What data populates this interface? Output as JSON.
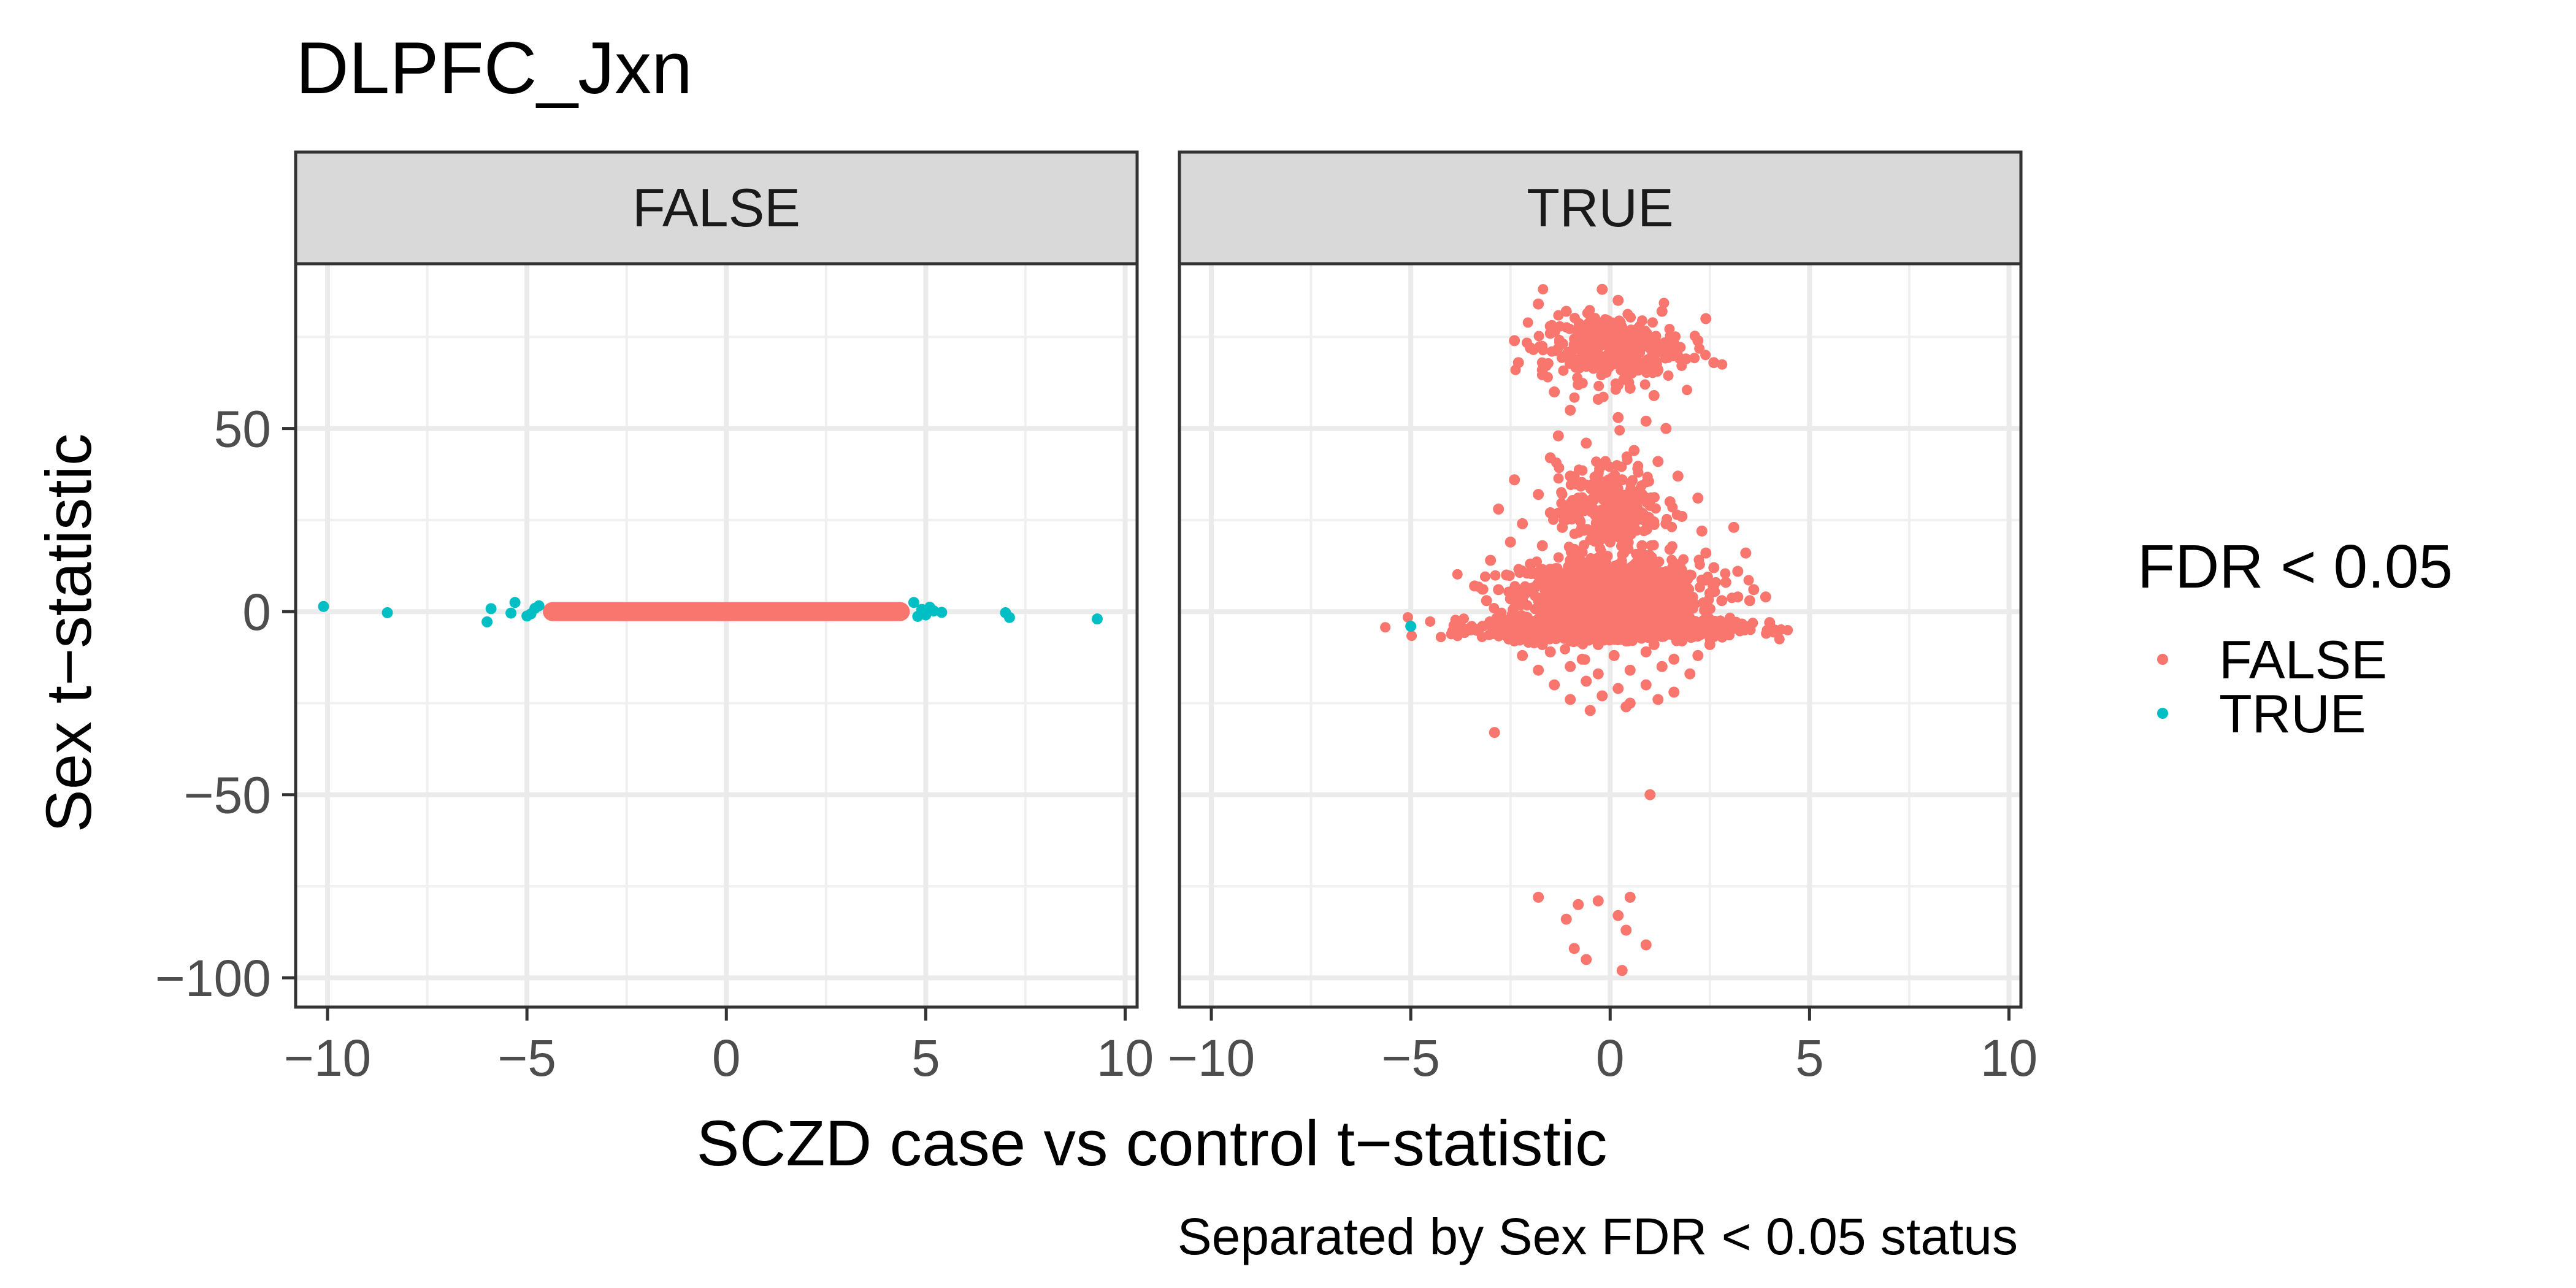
{
  "chart_data": {
    "type": "scatter",
    "title": "DLPFC_Jxn",
    "xlabel": "SCZD case vs control t−statistic",
    "ylabel": "Sex t−statistic",
    "caption": "Separated by Sex FDR < 0.05 status",
    "xlim": [
      -10.8,
      10.3
    ],
    "ylim": [
      -108,
      95
    ],
    "x_ticks": [
      -10,
      -5,
      0,
      5,
      10
    ],
    "x_tick_labels": [
      "−10",
      "−5",
      "0",
      "5",
      "10"
    ],
    "y_ticks": [
      50,
      0,
      -50,
      -100
    ],
    "y_tick_labels": [
      "50",
      "0",
      "−50",
      "−100"
    ],
    "grid": true,
    "legend": {
      "title": "FDR < 0.05",
      "placement": "right",
      "entries": [
        {
          "label": "FALSE",
          "color": "#F8766D"
        },
        {
          "label": "TRUE",
          "color": "#00BFC4"
        }
      ]
    },
    "facets": [
      {
        "label": "FALSE",
        "dense_band": {
          "x_range": [
            -4.6,
            4.6
          ],
          "y_half_height": 2.6,
          "color": "#F8766D"
        },
        "points_true": [
          [
            -10.1,
            1.4
          ],
          [
            -8.5,
            -0.3
          ],
          [
            -6.0,
            -2.8
          ],
          [
            -5.9,
            0.8
          ],
          [
            -5.3,
            2.5
          ],
          [
            -5.4,
            -0.4
          ],
          [
            -5.0,
            -1.2
          ],
          [
            -4.8,
            0.9
          ],
          [
            -4.9,
            -0.6
          ],
          [
            -4.7,
            1.6
          ],
          [
            4.7,
            2.5
          ],
          [
            4.8,
            -1.3
          ],
          [
            4.9,
            0.6
          ],
          [
            5.0,
            -0.9
          ],
          [
            5.1,
            1.2
          ],
          [
            5.2,
            0.2
          ],
          [
            5.4,
            -0.2
          ],
          [
            7.0,
            -0.3
          ],
          [
            7.1,
            -1.6
          ],
          [
            9.3,
            -2.0
          ]
        ],
        "points_false": []
      },
      {
        "label": "TRUE",
        "points_true": [
          [
            -5.0,
            -4.0
          ]
        ],
        "points_false": [
          [
            -1.8,
            84
          ],
          [
            -1.1,
            82
          ],
          [
            -0.2,
            88
          ],
          [
            0.2,
            85
          ],
          [
            1.3,
            82
          ],
          [
            2.4,
            80
          ],
          [
            -2.4,
            74
          ],
          [
            -2.0,
            72
          ],
          [
            -1.5,
            76
          ],
          [
            -0.9,
            73
          ],
          [
            -0.4,
            78
          ],
          [
            0.4,
            76
          ],
          [
            0.9,
            74
          ],
          [
            1.6,
            72
          ],
          [
            2.2,
            74
          ],
          [
            -2.3,
            68
          ],
          [
            -1.7,
            66
          ],
          [
            -1.1,
            70
          ],
          [
            -0.6,
            67
          ],
          [
            0.1,
            69
          ],
          [
            0.7,
            71
          ],
          [
            1.2,
            66
          ],
          [
            1.9,
            69
          ],
          [
            2.6,
            68
          ],
          [
            -1.4,
            60
          ],
          [
            -0.8,
            62
          ],
          [
            -0.3,
            58
          ],
          [
            0.5,
            61
          ],
          [
            1.1,
            59
          ],
          [
            -1.0,
            55
          ],
          [
            0.2,
            53
          ],
          [
            0.9,
            52
          ],
          [
            1.4,
            50
          ],
          [
            -1.3,
            48
          ],
          [
            -0.6,
            46
          ],
          [
            0.6,
            44
          ],
          [
            -1.5,
            42
          ],
          [
            -0.2,
            40
          ],
          [
            1.2,
            41
          ],
          [
            -2.4,
            36
          ],
          [
            -1.0,
            37
          ],
          [
            0.3,
            36
          ],
          [
            1.7,
            37
          ],
          [
            -1.8,
            32
          ],
          [
            -0.8,
            31
          ],
          [
            -0.1,
            33
          ],
          [
            0.8,
            32
          ],
          [
            1.5,
            30
          ],
          [
            2.2,
            31
          ],
          [
            3.1,
            23
          ],
          [
            3.4,
            16
          ],
          [
            -2.8,
            28
          ],
          [
            -1.5,
            27
          ],
          [
            -0.5,
            28
          ],
          [
            0.5,
            27
          ],
          [
            1.0,
            29
          ],
          [
            1.8,
            26
          ],
          [
            -2.2,
            24
          ],
          [
            -1.2,
            23
          ],
          [
            -0.3,
            22
          ],
          [
            0.6,
            23
          ],
          [
            1.4,
            24
          ],
          [
            2.3,
            22
          ],
          [
            -2.5,
            19
          ],
          [
            -1.7,
            18
          ],
          [
            -0.9,
            17
          ],
          [
            0.0,
            19
          ],
          [
            0.8,
            18
          ],
          [
            1.5,
            17
          ],
          [
            2.4,
            16
          ],
          [
            -3.0,
            14
          ],
          [
            -2.0,
            13
          ],
          [
            -1.0,
            14
          ],
          [
            -0.2,
            15
          ],
          [
            0.7,
            14
          ],
          [
            1.6,
            13
          ],
          [
            2.6,
            12
          ],
          [
            3.2,
            11
          ],
          [
            -2.6,
            10
          ],
          [
            -1.6,
            9
          ],
          [
            -0.6,
            10
          ],
          [
            0.3,
            11
          ],
          [
            1.1,
            9
          ],
          [
            2.0,
            10
          ],
          [
            2.9,
            8
          ],
          [
            3.6,
            6
          ],
          [
            -3.4,
            7
          ],
          [
            -2.8,
            6
          ],
          [
            -2.2,
            5
          ],
          [
            -1.4,
            7
          ],
          [
            -0.8,
            6
          ],
          [
            0.0,
            7
          ],
          [
            0.9,
            5
          ],
          [
            1.7,
            6
          ],
          [
            2.5,
            5
          ],
          [
            3.2,
            4
          ],
          [
            3.9,
            4
          ],
          [
            -3.1,
            3
          ],
          [
            -2.5,
            3.5
          ],
          [
            -1.8,
            3
          ],
          [
            -1.2,
            4
          ],
          [
            -0.4,
            3
          ],
          [
            0.4,
            3.5
          ],
          [
            1.2,
            3
          ],
          [
            2.0,
            4
          ],
          [
            2.8,
            3
          ],
          [
            3.5,
            3
          ],
          [
            -3.8,
            -3
          ],
          [
            -3.2,
            -4
          ],
          [
            -2.7,
            -3
          ],
          [
            -2.0,
            -4
          ],
          [
            -1.3,
            -3
          ],
          [
            -0.7,
            -4
          ],
          [
            0.0,
            -3
          ],
          [
            0.7,
            -4
          ],
          [
            1.4,
            -3
          ],
          [
            2.1,
            -4
          ],
          [
            2.8,
            -3
          ],
          [
            3.5,
            -4
          ],
          [
            4.0,
            -3
          ],
          [
            -3.5,
            -5
          ],
          [
            -2.9,
            -6
          ],
          [
            -2.2,
            -5
          ],
          [
            -1.5,
            -6
          ],
          [
            -0.8,
            -5
          ],
          [
            -0.1,
            -6
          ],
          [
            0.6,
            -5
          ],
          [
            1.3,
            -6
          ],
          [
            2.0,
            -5
          ],
          [
            2.7,
            -6
          ],
          [
            3.3,
            -5
          ],
          [
            -2.4,
            -8
          ],
          [
            -1.7,
            -9
          ],
          [
            -1.0,
            -8
          ],
          [
            -0.3,
            -9
          ],
          [
            0.4,
            -8
          ],
          [
            1.1,
            -9
          ],
          [
            1.8,
            -8
          ],
          [
            2.5,
            -9
          ],
          [
            -2.2,
            -12
          ],
          [
            -1.5,
            -11
          ],
          [
            -0.7,
            -13
          ],
          [
            0.1,
            -12
          ],
          [
            0.9,
            -11
          ],
          [
            1.6,
            -13
          ],
          [
            2.2,
            -12
          ],
          [
            -1.8,
            -16
          ],
          [
            -1.0,
            -15
          ],
          [
            -0.3,
            -17
          ],
          [
            0.5,
            -16
          ],
          [
            1.3,
            -15
          ],
          [
            2.0,
            -17
          ],
          [
            -1.4,
            -20
          ],
          [
            -0.6,
            -19
          ],
          [
            0.2,
            -21
          ],
          [
            0.9,
            -20
          ],
          [
            1.6,
            -22
          ],
          [
            -1.0,
            -24
          ],
          [
            -0.2,
            -23
          ],
          [
            0.5,
            -25
          ],
          [
            1.2,
            -24
          ],
          [
            -0.5,
            -27
          ],
          [
            0.4,
            -26
          ],
          [
            -2.9,
            -33
          ],
          [
            1.0,
            -50
          ],
          [
            -1.8,
            -78
          ],
          [
            -0.8,
            -80
          ],
          [
            -0.3,
            -79
          ],
          [
            0.5,
            -78
          ],
          [
            -1.1,
            -84
          ],
          [
            0.2,
            -83
          ],
          [
            0.4,
            -87
          ],
          [
            -0.9,
            -92
          ],
          [
            -0.6,
            -95
          ],
          [
            0.3,
            -98
          ],
          [
            0.9,
            -91
          ]
        ],
        "dense_clusters": [
          {
            "center": [
              0,
              5
            ],
            "spread": [
              2.2,
              9
            ],
            "count": 1000,
            "color": "#F8766D"
          },
          {
            "center": [
              0,
              -4.5
            ],
            "spread": [
              3.0,
              2.8
            ],
            "count": 950,
            "color": "#F8766D"
          },
          {
            "center": [
              0,
              72
            ],
            "spread": [
              1.7,
              9
            ],
            "count": 320,
            "color": "#F8766D"
          },
          {
            "center": [
              0,
              28
            ],
            "spread": [
              1.3,
              12
            ],
            "count": 260,
            "color": "#F8766D"
          }
        ]
      }
    ]
  }
}
